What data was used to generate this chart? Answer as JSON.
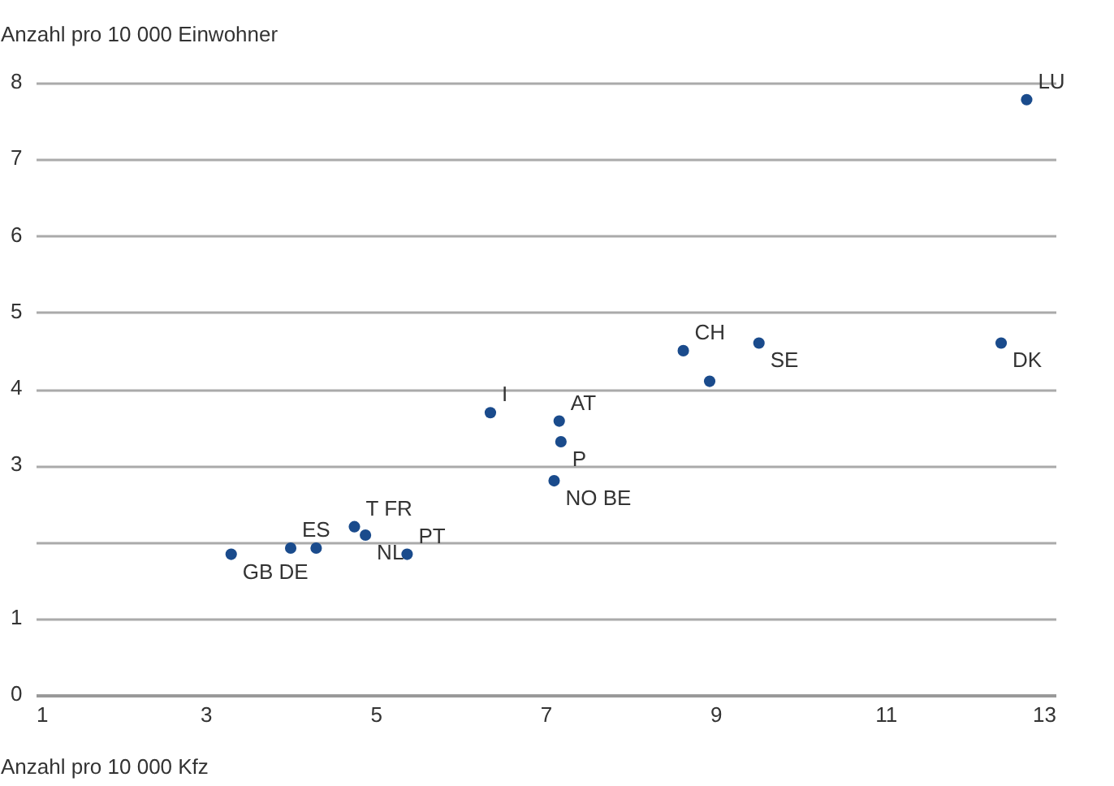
{
  "chart_data": {
    "type": "scatter",
    "xlabel": "Anzahl pro 10 000 Kfz",
    "ylabel": "Anzahl pro 10 000 Einwohner",
    "x": [
      3.3,
      4.0,
      4.3,
      4.75,
      4.88,
      5.37,
      6.35,
      7.16,
      7.18,
      7.1,
      8.62,
      8.93,
      9.51,
      12.36,
      12.66
    ],
    "series": [
      {
        "color": "#1a4b8c",
        "values": [
          1.84,
          1.92,
          1.92,
          2.2,
          2.09,
          1.84,
          3.69,
          3.58,
          3.31,
          2.8,
          4.5,
          4.1,
          4.6,
          4.6,
          7.78
        ]
      }
    ],
    "xlim": [
      1,
      13
    ],
    "xticks": [
      1,
      3,
      5,
      7,
      9,
      11,
      13
    ],
    "ylim": [
      0,
      8
    ],
    "yticks": [
      0,
      1,
      {
        "value": 2,
        "label": null
      },
      3,
      4,
      5,
      6,
      7,
      8
    ],
    "grid": "y",
    "marker": "circle",
    "annotations": [
      {
        "text": "LU",
        "x": 12.66,
        "y": 7.78
      },
      {
        "text": "DK",
        "x": 12.36,
        "y": 4.6
      },
      {
        "text": "CH",
        "x": 8.62,
        "y": 4.5
      },
      {
        "text": "SE",
        "x": 9.51,
        "y": 4.6
      },
      {
        "text": "AT",
        "x": 7.16,
        "y": 3.58
      },
      {
        "text": "P",
        "x": 7.18,
        "y": 3.31
      },
      {
        "text": "I",
        "x": 6.35,
        "y": 3.69
      },
      {
        "text": "NO BE",
        "x": 7.1,
        "y": 2.8
      },
      {
        "text": "T FR",
        "x": 4.75,
        "y": 2.2
      },
      {
        "text": "NL",
        "x": 4.88,
        "y": 2.09
      },
      {
        "text": "PT",
        "x": 5.37,
        "y": 1.84
      },
      {
        "text": "GB DE",
        "x": 3.3,
        "y": 1.84
      },
      {
        "text": "ES",
        "x": 4.0,
        "y": 1.92
      }
    ]
  }
}
